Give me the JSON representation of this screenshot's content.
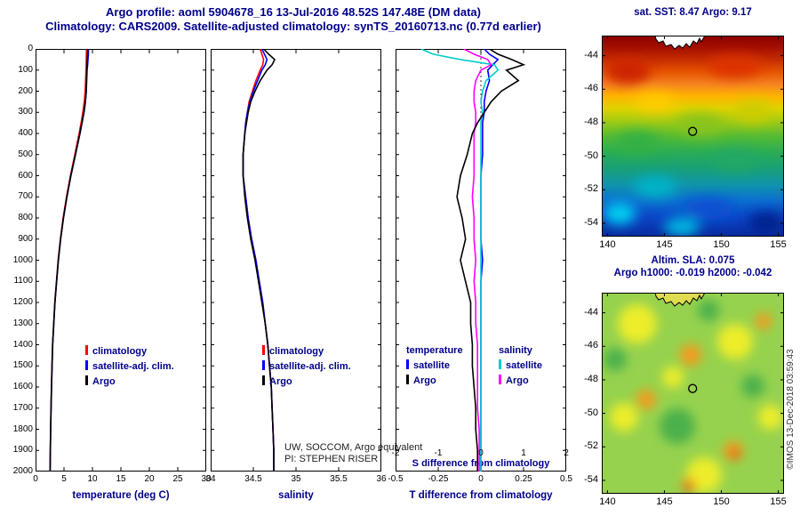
{
  "header": {
    "line1": "Argo profile: aoml 5904678_16 13-Jul-2016 48.52S 147.48E (DM data)",
    "line2": "Climatology: CARS2009. Satellite-adjusted climatology: synTS_20160713.nc (0.77d earlier)"
  },
  "colors": {
    "title_text": "#00008b",
    "climatology": "#ff0000",
    "satellite_adjusted": "#0000ff",
    "argo": "#000000",
    "salinity_satellite": "#00cccc",
    "salinity_argo": "#ff00ff"
  },
  "watermark": {
    "line1": "UW, SOCCOM, Argo equivalent",
    "line2": "PI: STEPHEN RISER"
  },
  "credit": "©IMOS 13-Dec-2018 03:59:43",
  "chart_data": [
    {
      "id": "temperature_profile",
      "type": "line",
      "xlabel": "temperature (deg C)",
      "xlim": [
        0,
        30
      ],
      "xticks": [
        0,
        5,
        10,
        15,
        20,
        25,
        30
      ],
      "ylim": [
        0,
        2000
      ],
      "y_reversed": true,
      "yticks": [
        0,
        100,
        200,
        300,
        400,
        500,
        600,
        700,
        800,
        900,
        1000,
        1100,
        1200,
        1300,
        1400,
        1500,
        1600,
        1700,
        1800,
        1900,
        2000
      ],
      "depth": [
        0,
        25,
        50,
        75,
        100,
        150,
        200,
        250,
        300,
        350,
        400,
        500,
        600,
        700,
        800,
        900,
        1000,
        1100,
        1200,
        1300,
        1400,
        1500,
        1600,
        1700,
        1800,
        1900,
        2000
      ],
      "series": [
        {
          "name": "climatology",
          "color": "#ff0000",
          "values": [
            8.95,
            8.94,
            8.92,
            8.9,
            8.87,
            8.8,
            8.72,
            8.57,
            8.32,
            8.0,
            7.66,
            6.9,
            6.12,
            5.44,
            4.85,
            4.36,
            3.97,
            3.67,
            3.38,
            3.18,
            2.98,
            2.88,
            2.79,
            2.71,
            2.64,
            2.59,
            2.54
          ]
        },
        {
          "name": "satellite-adj. clim.",
          "color": "#0000ff",
          "values": [
            9.3,
            9.28,
            9.22,
            9.15,
            9.06,
            8.98,
            8.92,
            8.77,
            8.52,
            8.17,
            7.82,
            7.02,
            6.22,
            5.52,
            4.91,
            4.41,
            4.01,
            3.71,
            3.41,
            3.21,
            3.01,
            2.91,
            2.81,
            2.73,
            2.66,
            2.61,
            2.56
          ]
        },
        {
          "name": "Argo",
          "color": "#000000",
          "values": [
            9.17,
            9.15,
            9.1,
            9.05,
            9.0,
            8.95,
            8.9,
            8.75,
            8.5,
            8.15,
            7.8,
            7.0,
            6.2,
            5.5,
            4.9,
            4.4,
            4.0,
            3.7,
            3.4,
            3.2,
            3.0,
            2.9,
            2.8,
            2.72,
            2.65,
            2.6,
            2.55
          ]
        }
      ],
      "legend": {
        "rows": [
          {
            "label": "climatology",
            "color": "#ff0000"
          },
          {
            "label": "satellite-adj. clim.",
            "color": "#0000ff"
          },
          {
            "label": "Argo",
            "color": "#000000"
          }
        ]
      }
    },
    {
      "id": "salinity_profile",
      "type": "line",
      "xlabel": "salinity",
      "xlim": [
        34,
        36
      ],
      "xticks": [
        34,
        34.5,
        35,
        35.5,
        36
      ],
      "ylim": [
        0,
        2000
      ],
      "y_reversed": true,
      "yticks": [
        0,
        100,
        200,
        300,
        400,
        500,
        600,
        700,
        800,
        900,
        1000,
        1100,
        1200,
        1300,
        1400,
        1500,
        1600,
        1700,
        1800,
        1900,
        2000
      ],
      "depth": [
        0,
        25,
        50,
        75,
        100,
        150,
        200,
        250,
        300,
        350,
        400,
        500,
        600,
        700,
        800,
        900,
        1000,
        1100,
        1200,
        1300,
        1400,
        1500,
        1600,
        1700,
        1800,
        1900,
        2000
      ],
      "series": [
        {
          "name": "climatology",
          "color": "#ff0000",
          "values": [
            34.58,
            34.6,
            34.62,
            34.61,
            34.58,
            34.53,
            34.49,
            34.45,
            34.43,
            34.41,
            34.4,
            34.38,
            34.38,
            34.41,
            34.44,
            34.48,
            34.53,
            34.57,
            34.61,
            34.64,
            34.67,
            34.69,
            34.71,
            34.72,
            34.73,
            34.74,
            34.74
          ]
        },
        {
          "name": "satellite-adj. clim.",
          "color": "#0000ff",
          "values": [
            34.6,
            34.63,
            34.66,
            34.64,
            34.6,
            34.55,
            34.5,
            34.46,
            34.43,
            34.41,
            34.4,
            34.38,
            34.38,
            34.41,
            34.44,
            34.48,
            34.53,
            34.57,
            34.61,
            34.64,
            34.67,
            34.69,
            34.71,
            34.72,
            34.73,
            34.74,
            34.74
          ]
        },
        {
          "name": "Argo",
          "color": "#000000",
          "values": [
            34.62,
            34.68,
            34.75,
            34.72,
            34.66,
            34.58,
            34.52,
            34.47,
            34.44,
            34.42,
            34.4,
            34.38,
            34.38,
            34.4,
            34.43,
            34.47,
            34.52,
            34.56,
            34.6,
            34.64,
            34.67,
            34.69,
            34.71,
            34.72,
            34.73,
            34.74,
            34.74
          ]
        }
      ],
      "legend": {
        "rows": [
          {
            "label": "climatology",
            "color": "#ff0000"
          },
          {
            "label": "satellite-adj. clim.",
            "color": "#0000ff"
          },
          {
            "label": "Argo",
            "color": "#000000"
          }
        ]
      }
    },
    {
      "id": "difference_profile",
      "type": "line",
      "xlabel": "T difference from climatology",
      "xlim": [
        -0.5,
        0.5
      ],
      "xticks": [
        -0.5,
        -0.25,
        0,
        0.25,
        0.5
      ],
      "zero_line": true,
      "axis2": {
        "lim": [
          -2,
          2
        ],
        "ticks": [
          -2,
          -1,
          0,
          1,
          2
        ],
        "label": "S difference from climatology"
      },
      "ylim": [
        0,
        2000
      ],
      "y_reversed": true,
      "yticks": [
        0,
        100,
        200,
        300,
        400,
        500,
        600,
        700,
        800,
        900,
        1000,
        1100,
        1200,
        1300,
        1400,
        1500,
        1600,
        1700,
        1800,
        1900,
        2000
      ],
      "depth": [
        0,
        25,
        50,
        75,
        100,
        150,
        200,
        250,
        300,
        350,
        400,
        500,
        600,
        700,
        800,
        900,
        1000,
        1100,
        1200,
        1300,
        1400,
        1500,
        1600,
        1700,
        1800,
        1900,
        2000
      ],
      "series": [
        {
          "name": "T satellite",
          "color": "#0000ff",
          "values": [
            0.02,
            0.05,
            0.1,
            0.07,
            0.04,
            0.05,
            0.03,
            0.02,
            0.02,
            0.01,
            0.01,
            0.01,
            0.0,
            0.0,
            0.0,
            0.0,
            0.01,
            0.0,
            0.0,
            0.0,
            0.0,
            0.0,
            0.0,
            0.0,
            0.0,
            0.0,
            0.0
          ]
        },
        {
          "name": "S satellite",
          "color": "#00cccc",
          "values": [
            -0.35,
            -0.28,
            -0.12,
            0.08,
            0.1,
            0.03,
            0.01,
            0.0,
            0.01,
            0.0,
            0.0,
            0.0,
            0.0,
            0.0,
            0.0,
            0.0,
            0.0,
            0.0,
            0.0,
            0.0,
            0.0,
            0.0,
            0.0,
            0.0,
            0.0,
            0.0,
            0.0
          ]
        },
        {
          "name": "S Argo",
          "color": "#ff00ff",
          "values": [
            -0.1,
            -0.04,
            0.04,
            0.06,
            0.0,
            -0.03,
            -0.04,
            -0.04,
            -0.03,
            -0.03,
            -0.04,
            -0.04,
            -0.04,
            -0.05,
            -0.04,
            -0.04,
            -0.03,
            -0.04,
            -0.03,
            -0.03,
            -0.02,
            -0.02,
            -0.02,
            -0.02,
            -0.01,
            -0.01,
            -0.01
          ]
        },
        {
          "name": "T Argo",
          "color": "#000000",
          "values": [
            0.05,
            0.1,
            0.18,
            0.25,
            0.15,
            0.22,
            0.12,
            0.06,
            0.02,
            -0.02,
            -0.05,
            -0.08,
            -0.12,
            -0.14,
            -0.11,
            -0.09,
            -0.12,
            -0.09,
            -0.06,
            -0.06,
            -0.05,
            -0.05,
            -0.04,
            -0.03,
            -0.03,
            -0.02,
            -0.02
          ]
        }
      ],
      "legend_groups": [
        {
          "header": "temperature",
          "rows": [
            {
              "label": "satellite",
              "color": "#0000ff"
            },
            {
              "label": "Argo",
              "color": "#000000"
            }
          ]
        },
        {
          "header": "salinity",
          "rows": [
            {
              "label": "satellite",
              "color": "#00cccc"
            },
            {
              "label": "Argo",
              "color": "#ff00ff"
            }
          ]
        }
      ]
    },
    {
      "id": "sst_map",
      "type": "heatmap",
      "title": "sat. SST: 8.47 Argo: 9.17",
      "xlim": [
        139.5,
        155.5
      ],
      "xticks": [
        140,
        145,
        150,
        155
      ],
      "ylim": [
        -42.8,
        -54.8
      ],
      "yticks": [
        -44,
        -46,
        -48,
        -50,
        -52,
        -54
      ],
      "marker": {
        "lon": 147.48,
        "lat": -48.52
      }
    },
    {
      "id": "sla_map",
      "type": "heatmap",
      "title1": "Altim. SLA: 0.075",
      "title2": "Argo h1000: -0.019 h2000: -0.042",
      "xlim": [
        139.5,
        155.5
      ],
      "xticks": [
        140,
        145,
        150,
        155
      ],
      "ylim": [
        -42.8,
        -54.8
      ],
      "yticks": [
        -44,
        -46,
        -48,
        -50,
        -52,
        -54
      ],
      "marker": {
        "lon": 147.48,
        "lat": -48.52
      }
    }
  ]
}
